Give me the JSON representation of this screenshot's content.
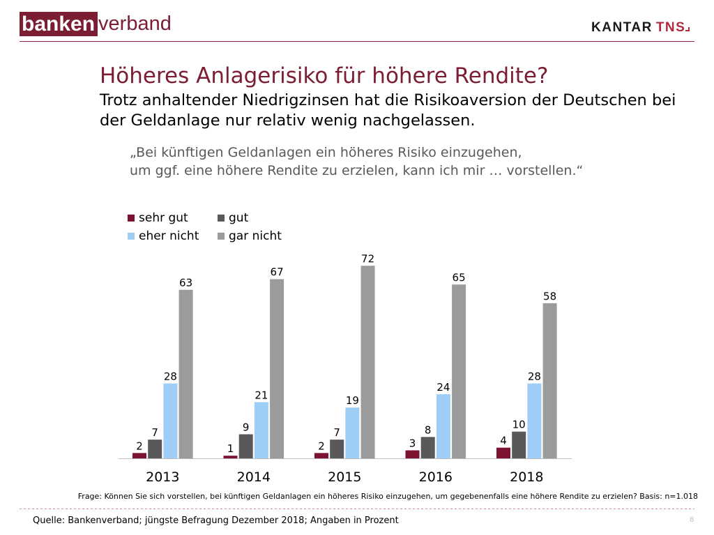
{
  "theme": {
    "brand": "#7b1d33",
    "tns_red": "#b02a3e"
  },
  "header": {
    "logo_left": {
      "part1": "banken",
      "part2": "verband"
    },
    "logo_right": {
      "part1": "KANTAR",
      "part2": "TNS"
    }
  },
  "title": "Höheres Anlagerisiko für höhere Rendite?",
  "subtitle": {
    "lines": [
      "Trotz anhaltender Niedrigzinsen hat die Risikoaversion der Deutschen bei",
      "der Geldanlage nur relativ wenig nachgelassen."
    ]
  },
  "quote": {
    "lines": [
      "„Bei künftigen Geldanlagen ein höheres Risiko einzugehen,",
      "um ggf. eine höhere Rendite zu erzielen, kann ich mir … vorstellen.“"
    ]
  },
  "chart_data": {
    "type": "bar",
    "categories": [
      "2013",
      "2014",
      "2015",
      "2016",
      "2018"
    ],
    "series": [
      {
        "name": "sehr gut",
        "color": "#7c1431",
        "values": [
          2,
          1,
          2,
          3,
          4
        ]
      },
      {
        "name": "gut",
        "color": "#595959",
        "values": [
          7,
          9,
          7,
          8,
          10
        ]
      },
      {
        "name": "eher nicht",
        "color": "#9ecdf6",
        "values": [
          28,
          21,
          19,
          24,
          28
        ]
      },
      {
        "name": "gar nicht",
        "color": "#9b9b9b",
        "values": [
          63,
          67,
          72,
          65,
          58
        ]
      }
    ],
    "ylim": [
      0,
      80
    ],
    "y_axis_visible": false,
    "grid": false,
    "data_labels": true,
    "legend": "top-left"
  },
  "footnote": "Frage: Können Sie sich vorstellen, bei künftigen Geldanlagen ein höheres Risiko einzugehen, um gegebenenfalls eine höhere Rendite zu erzielen? Basis: n=1.018",
  "source": "Quelle: Bankenverband; jüngste Befragung Dezember 2018; Angaben in Prozent",
  "page_number": "8"
}
